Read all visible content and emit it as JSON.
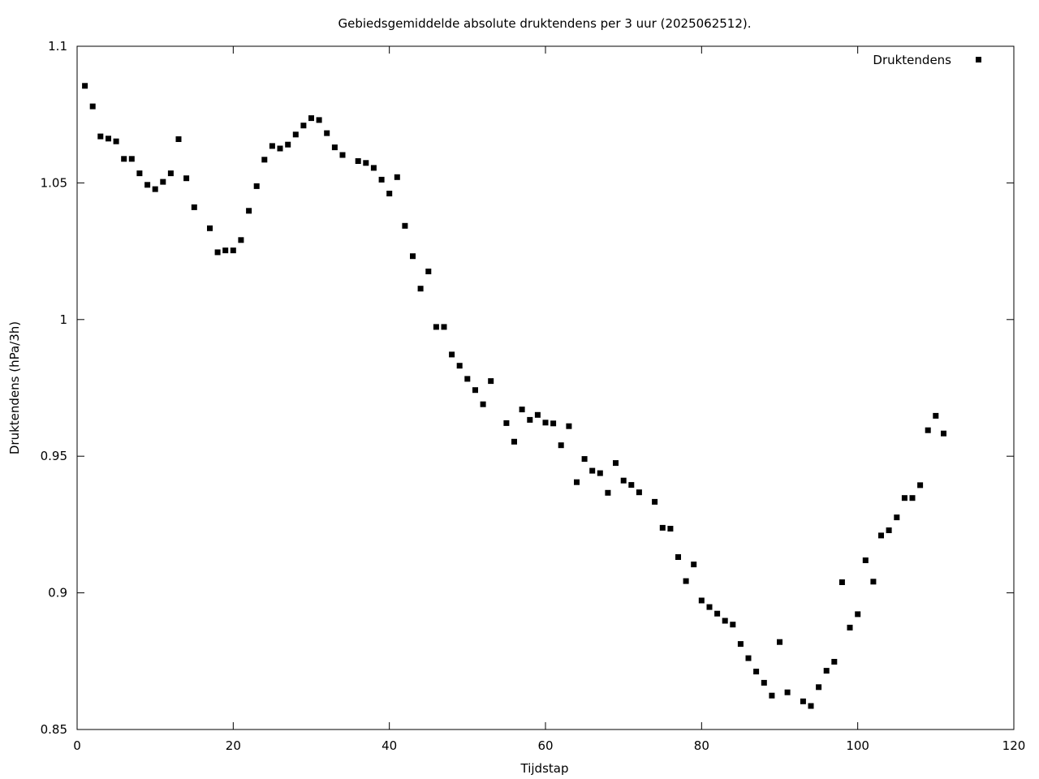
{
  "chart_data": {
    "type": "scatter",
    "title": "Gebiedsgemiddelde absolute druktendens per 3 uur (2025062512).",
    "xlabel": "Tijdstap",
    "ylabel": "Druktendens (hPa/3h)",
    "xlim": [
      0,
      120
    ],
    "ylim": [
      0.85,
      1.1
    ],
    "x_ticks": [
      0,
      20,
      40,
      60,
      80,
      100,
      120
    ],
    "y_ticks": [
      0.85,
      0.9,
      0.95,
      1,
      1.05,
      1.1
    ],
    "x_tick_labels": [
      "0",
      "20",
      "40",
      "60",
      "80",
      "100",
      "120"
    ],
    "y_tick_labels": [
      "0.85",
      "0.9",
      "0.95",
      "1",
      "1.05",
      "1.1"
    ],
    "grid": false,
    "legend_position": "top-right",
    "marker": "square",
    "color": "#000000",
    "series": [
      {
        "name": "Druktendens",
        "points": [
          [
            1,
            1.0855
          ],
          [
            2,
            1.078
          ],
          [
            3,
            1.067
          ],
          [
            4,
            1.0662
          ],
          [
            5,
            1.0652
          ],
          [
            6,
            1.0588
          ],
          [
            7,
            1.0588
          ],
          [
            8,
            1.0535
          ],
          [
            9,
            1.0493
          ],
          [
            10,
            1.0477
          ],
          [
            11,
            1.0504
          ],
          [
            12,
            1.0535
          ],
          [
            13,
            1.066
          ],
          [
            14,
            1.0517
          ],
          [
            15,
            1.0411
          ],
          [
            17,
            1.0334
          ],
          [
            18,
            1.0246
          ],
          [
            19,
            1.0253
          ],
          [
            20,
            1.0253
          ],
          [
            21,
            1.0291
          ],
          [
            22,
            1.0398
          ],
          [
            23,
            1.0488
          ],
          [
            24,
            1.0585
          ],
          [
            25,
            1.0635
          ],
          [
            26,
            1.0626
          ],
          [
            27,
            1.064
          ],
          [
            28,
            1.0677
          ],
          [
            29,
            1.071
          ],
          [
            30,
            1.0737
          ],
          [
            31,
            1.073
          ],
          [
            32,
            1.0682
          ],
          [
            33,
            1.063
          ],
          [
            34,
            1.0602
          ],
          [
            36,
            1.058
          ],
          [
            37,
            1.0573
          ],
          [
            38,
            1.0555
          ],
          [
            39,
            1.0512
          ],
          [
            40,
            1.0461
          ],
          [
            41,
            1.0521
          ],
          [
            42,
            1.0343
          ],
          [
            43,
            1.0232
          ],
          [
            44,
            1.0113
          ],
          [
            45,
            1.0176
          ],
          [
            46,
            0.9973
          ],
          [
            47,
            0.9973
          ],
          [
            48,
            0.9872
          ],
          [
            49,
            0.9831
          ],
          [
            50,
            0.9783
          ],
          [
            51,
            0.9742
          ],
          [
            52,
            0.969
          ],
          [
            53,
            0.9775
          ],
          [
            55,
            0.9621
          ],
          [
            56,
            0.9553
          ],
          [
            57,
            0.9671
          ],
          [
            58,
            0.9633
          ],
          [
            59,
            0.9651
          ],
          [
            60,
            0.9623
          ],
          [
            61,
            0.962
          ],
          [
            62,
            0.954
          ],
          [
            63,
            0.961
          ],
          [
            64,
            0.9405
          ],
          [
            65,
            0.949
          ],
          [
            66,
            0.9447
          ],
          [
            67,
            0.9438
          ],
          [
            68,
            0.9366
          ],
          [
            69,
            0.9475
          ],
          [
            70,
            0.9411
          ],
          [
            71,
            0.9395
          ],
          [
            72,
            0.9368
          ],
          [
            74,
            0.9333
          ],
          [
            75,
            0.9238
          ],
          [
            76,
            0.9235
          ],
          [
            77,
            0.9131
          ],
          [
            78,
            0.9043
          ],
          [
            79,
            0.9104
          ],
          [
            80,
            0.8972
          ],
          [
            81,
            0.8948
          ],
          [
            82,
            0.8924
          ],
          [
            83,
            0.8898
          ],
          [
            84,
            0.8884
          ],
          [
            85,
            0.8813
          ],
          [
            86,
            0.8761
          ],
          [
            87,
            0.8712
          ],
          [
            88,
            0.8671
          ],
          [
            89,
            0.8624
          ],
          [
            90,
            0.882
          ],
          [
            91,
            0.8636
          ],
          [
            93,
            0.8603
          ],
          [
            94,
            0.8586
          ],
          [
            95,
            0.8655
          ],
          [
            96,
            0.8715
          ],
          [
            97,
            0.8748
          ],
          [
            98,
            0.9039
          ],
          [
            99,
            0.8873
          ],
          [
            100,
            0.8922
          ],
          [
            101,
            0.9119
          ],
          [
            102,
            0.9041
          ],
          [
            103,
            0.921
          ],
          [
            104,
            0.9229
          ],
          [
            105,
            0.9276
          ],
          [
            106,
            0.9347
          ],
          [
            107,
            0.9347
          ],
          [
            108,
            0.9394
          ],
          [
            109,
            0.9595
          ],
          [
            110,
            0.9648
          ],
          [
            111,
            0.9583
          ]
        ]
      }
    ]
  }
}
